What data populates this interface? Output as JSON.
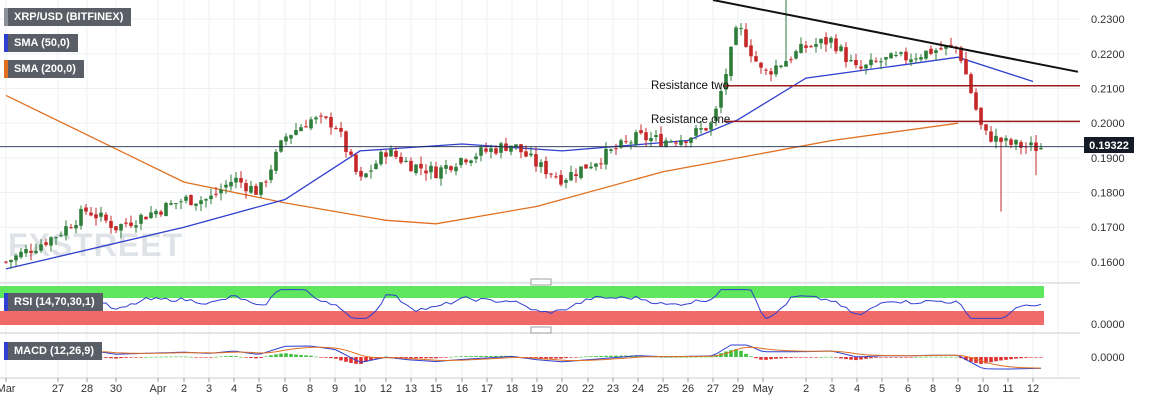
{
  "main_legend": {
    "title": "XRP/USD (BITFINEX)"
  },
  "indicator_legends": {
    "sma50": "SMA (50,0)",
    "sma200": "SMA (200,0)",
    "rsi": "RSI (14,70,30,1)",
    "macd": "MACD (12,26,9)"
  },
  "watermark": "FXSTREET",
  "annotations": {
    "resistance_two": "Resistance two",
    "resistance_one": "Resistance one"
  },
  "price_badge": "0.19322",
  "price_ticks": [
    "0.2300",
    "0.2200",
    "0.2100",
    "0.2000",
    "0.1900",
    "0.1800",
    "0.1700",
    "0.1600"
  ],
  "rsi_tick": "0.0000",
  "macd_tick": "0.0000",
  "date_ticks": [
    "Mar",
    "27",
    "28",
    "30",
    "Apr",
    "2",
    "3",
    "4",
    "5",
    "6",
    "8",
    "9",
    "10",
    "12",
    "13",
    "15",
    "16",
    "17",
    "18",
    "19",
    "20",
    "22",
    "23",
    "24",
    "25",
    "26",
    "27",
    "29",
    "May",
    "2",
    "3",
    "4",
    "5",
    "6",
    "8",
    "9",
    "10",
    "11",
    "12"
  ],
  "colors": {
    "up": "#2e7d3a",
    "down": "#c62828",
    "sma50": "#2f3fcf",
    "sma200": "#e07020",
    "trendline": "#111111",
    "resistance": "#9e1b1b",
    "rsi_line": "#2f3fcf",
    "rsi_overbought": "#5ee65e",
    "rsi_oversold": "#f06a6a",
    "macd_line": "#2f3fcf",
    "signal_line": "#e07020",
    "hist_up": "#3ec03e",
    "hist_down": "#e03030"
  },
  "chart_data": {
    "type": "candlestick",
    "pair": "XRP/USD",
    "exchange": "BITFINEX",
    "ylim": [
      0.1545,
      0.2355
    ],
    "x_range": [
      "Mar 26",
      "May 12"
    ],
    "last_price": 0.19322,
    "resistance_levels": [
      {
        "name": "Resistance two",
        "price": 0.2108
      },
      {
        "name": "Resistance one",
        "price": 0.2005
      }
    ],
    "trendline": {
      "from": {
        "date": "Apr 27",
        "price": 0.2355
      },
      "to": {
        "date": "May 12",
        "price": 0.2148
      }
    },
    "price_path": [
      {
        "date": "Mar 26",
        "price": 0.16
      },
      {
        "date": "Mar 27",
        "price": 0.168
      },
      {
        "date": "Mar 28",
        "price": 0.175
      },
      {
        "date": "Mar 30",
        "price": 0.17
      },
      {
        "date": "Apr 2",
        "price": 0.178
      },
      {
        "date": "Apr 3",
        "price": 0.178
      },
      {
        "date": "Apr 4",
        "price": 0.184
      },
      {
        "date": "Apr 5",
        "price": 0.18
      },
      {
        "date": "Apr 6",
        "price": 0.196
      },
      {
        "date": "Apr 8",
        "price": 0.201
      },
      {
        "date": "Apr 9",
        "price": 0.2
      },
      {
        "date": "Apr 10",
        "price": 0.183
      },
      {
        "date": "Apr 12",
        "price": 0.192
      },
      {
        "date": "Apr 13",
        "price": 0.188
      },
      {
        "date": "Apr 15",
        "price": 0.186
      },
      {
        "date": "Apr 16",
        "price": 0.19
      },
      {
        "date": "Apr 17",
        "price": 0.192
      },
      {
        "date": "Apr 18",
        "price": 0.194
      },
      {
        "date": "Apr 19",
        "price": 0.188
      },
      {
        "date": "Apr 20",
        "price": 0.184
      },
      {
        "date": "Apr 22",
        "price": 0.188
      },
      {
        "date": "Apr 23",
        "price": 0.192
      },
      {
        "date": "Apr 24",
        "price": 0.196
      },
      {
        "date": "Apr 25",
        "price": 0.195
      },
      {
        "date": "Apr 26",
        "price": 0.196
      },
      {
        "date": "Apr 27",
        "price": 0.2
      },
      {
        "date": "Apr 29",
        "price": 0.228
      },
      {
        "date": "May 1",
        "price": 0.214
      },
      {
        "date": "May 2",
        "price": 0.222
      },
      {
        "date": "May 3",
        "price": 0.224
      },
      {
        "date": "May 4",
        "price": 0.215
      },
      {
        "date": "May 5",
        "price": 0.218
      },
      {
        "date": "May 6",
        "price": 0.219
      },
      {
        "date": "May 8",
        "price": 0.221
      },
      {
        "date": "May 9",
        "price": 0.222
      },
      {
        "date": "May 10",
        "price": 0.197
      },
      {
        "date": "May 11",
        "price": 0.194
      },
      {
        "date": "May 12",
        "price": 0.193
      }
    ],
    "sma50": [
      {
        "date": "Mar 26",
        "value": 0.158
      },
      {
        "date": "Apr 2",
        "value": 0.17
      },
      {
        "date": "Apr 6",
        "value": 0.178
      },
      {
        "date": "Apr 10",
        "value": 0.192
      },
      {
        "date": "Apr 16",
        "value": 0.194
      },
      {
        "date": "Apr 20",
        "value": 0.192
      },
      {
        "date": "Apr 26",
        "value": 0.195
      },
      {
        "date": "Apr 29",
        "value": 0.201
      },
      {
        "date": "May 2",
        "value": 0.213
      },
      {
        "date": "May 6",
        "value": 0.217
      },
      {
        "date": "May 9",
        "value": 0.219
      },
      {
        "date": "May 12",
        "value": 0.212
      }
    ],
    "sma200": [
      {
        "date": "Mar 26",
        "value": 0.208
      },
      {
        "date": "Apr 2",
        "value": 0.183
      },
      {
        "date": "Apr 6",
        "value": 0.177
      },
      {
        "date": "Apr 12",
        "value": 0.172
      },
      {
        "date": "Apr 15",
        "value": 0.171
      },
      {
        "date": "Apr 19",
        "value": 0.176
      },
      {
        "date": "Apr 25",
        "value": 0.186
      },
      {
        "date": "May 3",
        "value": 0.195
      },
      {
        "date": "May 9",
        "value": 0.2
      }
    ],
    "rsi_levels": {
      "overbought": 70,
      "oversold": 30
    },
    "macd_params": [
      12,
      26,
      9
    ]
  }
}
